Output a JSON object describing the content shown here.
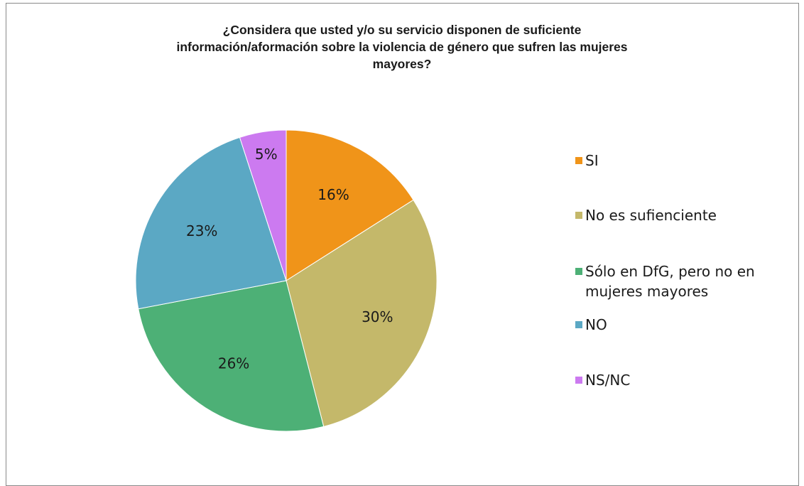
{
  "chart_data": {
    "type": "pie",
    "title_lines": [
      "¿Considera que usted y/o su servicio disponen de suficiente",
      "información/aformación sobre la violencia de género que sufren las mujeres",
      "mayores?"
    ],
    "slices": [
      {
        "name": "SI",
        "value": 16,
        "label": "16%",
        "color": "#F09419"
      },
      {
        "name": "No es sufienciente",
        "value": 30,
        "label": "30%",
        "color": "#C4B86A"
      },
      {
        "name": "Sólo en DfG, pero no en mujeres mayores",
        "value": 26,
        "label": "26%",
        "color": "#4DB076"
      },
      {
        "name": "NO",
        "value": 23,
        "label": "23%",
        "color": "#5BA8C4"
      },
      {
        "name": "NS/NC",
        "value": 5,
        "label": "5%",
        "color": "#CC7AF0"
      }
    ],
    "legend_position": "right",
    "start_angle": "top, clockwise"
  }
}
